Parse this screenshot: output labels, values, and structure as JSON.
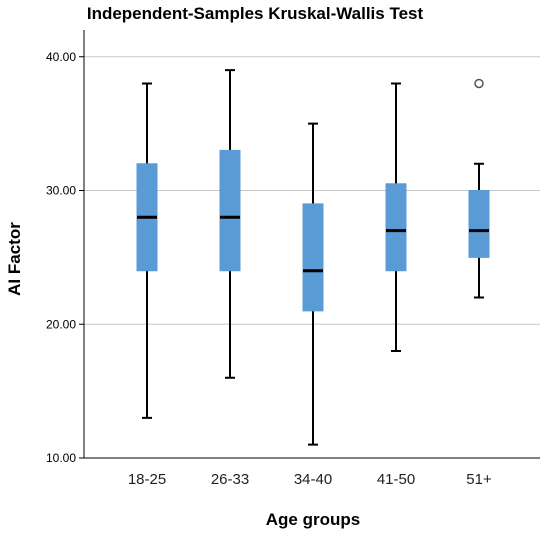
{
  "chart_data": {
    "type": "boxplot",
    "title": "Independent-Samples Kruskal-Wallis Test",
    "xlabel": "Age groups",
    "ylabel": "AI Factor",
    "ylim": [
      10,
      42
    ],
    "yticks": [
      10,
      20,
      30,
      40
    ],
    "ytick_labels": [
      "10.00",
      "20.00",
      "30.00",
      "40.00"
    ],
    "grid": true,
    "box_color": "#5b9bd5",
    "grid_color": "#c8c8c8",
    "categories": [
      "18-25",
      "26-33",
      "34-40",
      "41-50",
      "51+"
    ],
    "boxes": [
      {
        "min": 13,
        "q1": 24,
        "median": 28,
        "q3": 32,
        "max": 38,
        "outliers": []
      },
      {
        "min": 16,
        "q1": 24,
        "median": 28,
        "q3": 33,
        "max": 39,
        "outliers": []
      },
      {
        "min": 11,
        "q1": 21,
        "median": 24,
        "q3": 29,
        "max": 35,
        "outliers": []
      },
      {
        "min": 18,
        "q1": 24,
        "median": 27,
        "q3": 30.5,
        "max": 38,
        "outliers": []
      },
      {
        "min": 22,
        "q1": 25,
        "median": 27,
        "q3": 30,
        "max": 32,
        "outliers": [
          38
        ]
      }
    ]
  }
}
